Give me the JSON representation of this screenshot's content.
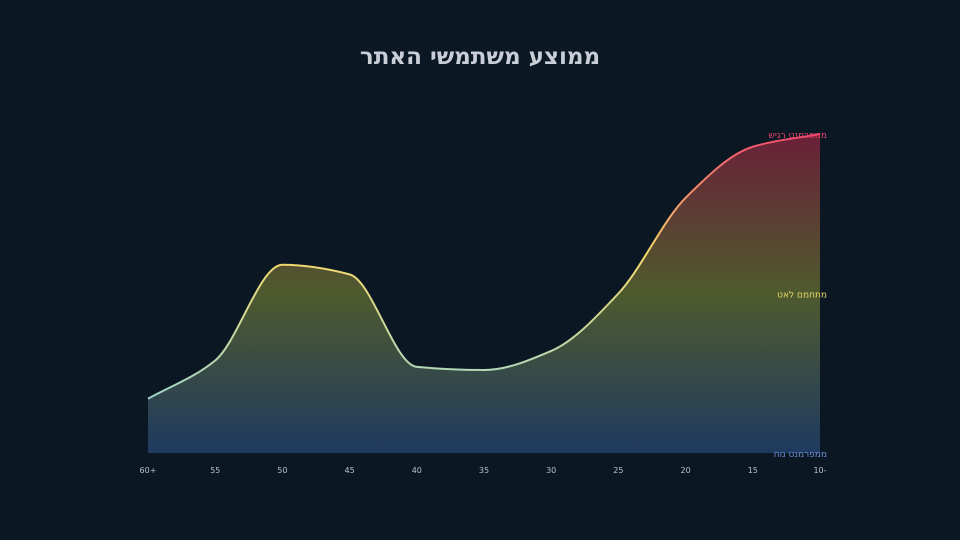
{
  "title": "ממוצע משתמשי האתר",
  "chart_data": {
    "type": "area",
    "title": "ממוצע משתמשי האתר",
    "x_labels": [
      "60+",
      "55",
      "50",
      "45",
      "40",
      "35",
      "30",
      "25",
      "20",
      "15",
      "10-"
    ],
    "xlabel": "",
    "ylabel": "",
    "y_levels": [
      {
        "label": "ממפרמנט רגיש",
        "value": 100,
        "color": "#e8456a"
      },
      {
        "label": "מתחמם לאט",
        "value": 50,
        "color": "#e8d86a"
      },
      {
        "label": "ממפרמנט נוח",
        "value": 0,
        "color": "#6f8fd8"
      }
    ],
    "ylim": [
      0,
      100
    ],
    "series": [
      {
        "values": [
          {
            "x": "60+",
            "y": 17
          },
          {
            "x": "55",
            "y": 29
          },
          {
            "x": "50",
            "y": 59
          },
          {
            "x": "45",
            "y": 56
          },
          {
            "x": "40",
            "y": 27
          },
          {
            "x": "35",
            "y": 26
          },
          {
            "x": "30",
            "y": 32
          },
          {
            "x": "25",
            "y": 50
          },
          {
            "x": "20",
            "y": 80
          },
          {
            "x": "15",
            "y": 96
          },
          {
            "x": "10-",
            "y": 100
          }
        ]
      }
    ],
    "gradient_colors": [
      "#ef4a6c",
      "#f6d86a",
      "#9fd6cc"
    ],
    "fill_colors": [
      "#6a2038",
      "#4e5a2e",
      "#1f3a60"
    ],
    "grid": false,
    "legend": "none"
  }
}
